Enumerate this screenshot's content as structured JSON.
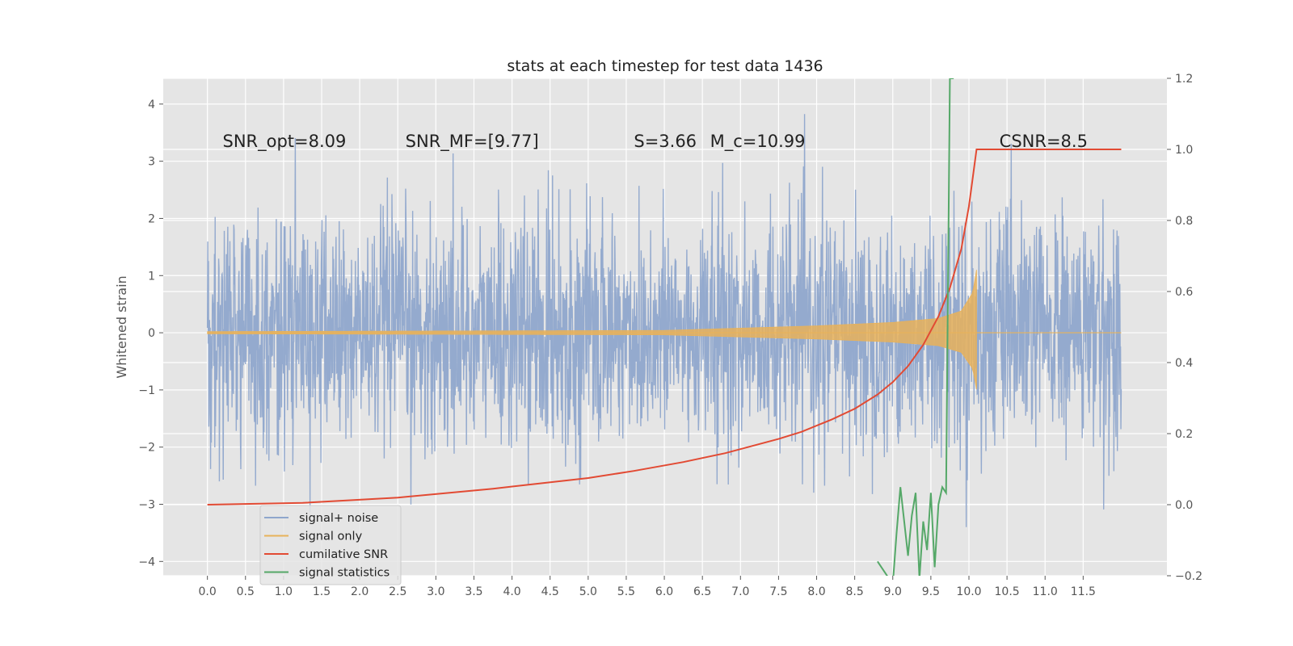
{
  "chart_data": {
    "type": "line",
    "title": "stats at each timestep for test data 1436",
    "xlabel": "",
    "ylabel": "Whitened strain",
    "xlim": [
      -0.58,
      12.6
    ],
    "ylim": [
      -4.25,
      4.45
    ],
    "y2lim": [
      -0.2,
      1.2
    ],
    "grid": true,
    "legend_position": "lower-left",
    "x_ticks": [
      "0.0",
      "0.5",
      "1.0",
      "1.5",
      "2.0",
      "2.5",
      "3.0",
      "3.5",
      "4.0",
      "4.5",
      "5.0",
      "5.5",
      "6.0",
      "6.5",
      "7.0",
      "7.5",
      "8.0",
      "8.5",
      "9.0",
      "9.5",
      "10.0",
      "10.5",
      "11.0",
      "11.5"
    ],
    "y_ticks": [
      "4",
      "3",
      "2",
      "1",
      "0",
      "−1",
      "−2",
      "−3",
      "−4"
    ],
    "y2_ticks": [
      "1.2",
      "1.0",
      "0.8",
      "0.6",
      "0.4",
      "0.2",
      "0.0",
      "−0.2"
    ],
    "annotations": [
      {
        "label": "SNR_opt=8.09",
        "x": 0.2,
        "y": 3.25
      },
      {
        "label": "SNR_MF=[9.77]",
        "x": 2.6,
        "y": 3.25
      },
      {
        "label": "S=3.66",
        "x": 5.6,
        "y": 3.25
      },
      {
        "label": "M_c=10.99",
        "x": 6.6,
        "y": 3.25
      },
      {
        "label": "CSNR=8.5",
        "x": 10.4,
        "y": 3.25
      }
    ],
    "series": [
      {
        "name": "signal+ noise",
        "color": "#8fa6cc",
        "axis": "left",
        "x_range": [
          0,
          12.0
        ],
        "envelope_max": 4.1,
        "envelope_min": -3.85,
        "std": 1.0
      },
      {
        "name": "signal only",
        "color": "#e8b25a",
        "axis": "left",
        "x_range": [
          0,
          10.1
        ],
        "amplitude": [
          [
            0,
            0.02
          ],
          [
            6.0,
            0.04
          ],
          [
            8.0,
            0.12
          ],
          [
            9.0,
            0.18
          ],
          [
            9.6,
            0.25
          ],
          [
            9.9,
            0.38
          ],
          [
            10.05,
            0.7
          ],
          [
            10.1,
            1.1
          ]
        ],
        "note_value_after": 0
      },
      {
        "name": "cumilative SNR",
        "color": "#e24a33",
        "axis": "right",
        "x": [
          0,
          1.25,
          2.5,
          3.75,
          5.0,
          5.6,
          6.25,
          6.8,
          7.5,
          7.8,
          8.2,
          8.5,
          8.8,
          9.0,
          9.2,
          9.4,
          9.6,
          9.75,
          9.9,
          10.0,
          10.05,
          10.1,
          10.5,
          11.0,
          11.5,
          12.0
        ],
        "y": [
          0.0,
          0.005,
          0.02,
          0.045,
          0.075,
          0.095,
          0.12,
          0.145,
          0.185,
          0.205,
          0.24,
          0.27,
          0.31,
          0.345,
          0.39,
          0.45,
          0.53,
          0.61,
          0.72,
          0.84,
          0.92,
          1.0,
          1.0,
          1.0,
          1.0,
          1.0
        ]
      },
      {
        "name": "signal statistics",
        "color": "#55a868",
        "axis": "left",
        "x": [
          8.8,
          8.9,
          9.0,
          9.05,
          9.1,
          9.2,
          9.25,
          9.3,
          9.35,
          9.4,
          9.45,
          9.5,
          9.55,
          9.6,
          9.65,
          9.7,
          9.75,
          9.78,
          9.8
        ],
        "y": [
          -4.0,
          -4.2,
          -4.4,
          -3.5,
          -2.7,
          -3.9,
          -3.2,
          -2.8,
          -4.3,
          -3.3,
          -3.8,
          -2.8,
          -4.1,
          -3.0,
          -2.7,
          -2.8,
          4.45,
          4.45,
          4.45
        ]
      }
    ]
  }
}
